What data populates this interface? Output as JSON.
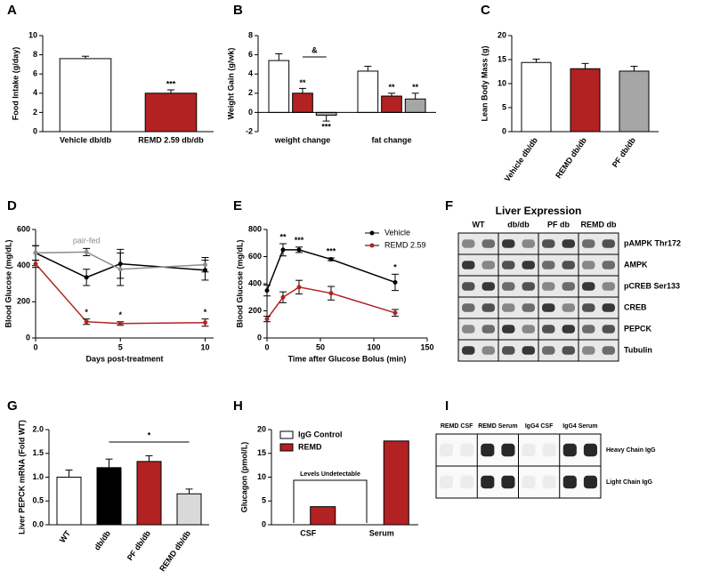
{
  "chart_data": [
    {
      "letter": "A",
      "type": "bar",
      "ylabel": "Food Intake (g/day)",
      "categories": [
        "Vehicle db/db",
        "REMD 2.59 db/db"
      ],
      "values": [
        7.6,
        4.0
      ],
      "errors": [
        0.25,
        0.35
      ],
      "colors": [
        "#ffffff",
        "#b22222"
      ],
      "labels": [
        null,
        "***"
      ],
      "ylim": [
        0,
        10
      ],
      "yticks": [
        0,
        2,
        4,
        6,
        8,
        10
      ]
    },
    {
      "letter": "B",
      "type": "bar",
      "ylabel": "Weight Gain (g/wk)",
      "categories": [
        "weight change",
        "fat change"
      ],
      "series": [
        {
          "color": "#ffffff",
          "values": [
            5.4,
            4.3
          ],
          "errors": [
            0.7,
            0.5
          ]
        },
        {
          "color": "#b22222",
          "values": [
            2.0,
            1.7
          ],
          "errors": [
            0.5,
            0.3
          ],
          "labels": [
            "**",
            "**"
          ]
        },
        {
          "color": "#a6a6a6",
          "values": [
            -0.3,
            1.4
          ],
          "errors": [
            0.6,
            0.6
          ],
          "labels": [
            "***",
            "**"
          ]
        }
      ],
      "bracket": {
        "text": "&"
      },
      "ylim": [
        -2,
        8
      ],
      "yticks": [
        -2,
        0,
        2,
        4,
        6,
        8
      ]
    },
    {
      "letter": "C",
      "type": "bar",
      "ylabel": "Lean Body Mass (g)",
      "categories": [
        "Vehicle db/db",
        "REMD db/db",
        "PF db/db"
      ],
      "values": [
        14.4,
        13.1,
        12.6
      ],
      "errors": [
        0.7,
        1.1,
        1.0
      ],
      "colors": [
        "#ffffff",
        "#b22222",
        "#a6a6a6"
      ],
      "ylim": [
        0,
        20
      ],
      "yticks": [
        0,
        5,
        10,
        15,
        20
      ]
    },
    {
      "letter": "D",
      "type": "line",
      "xlabel": "Days post-treatment",
      "ylabel": "Blood Glucose (mg/dL)",
      "x": [
        0,
        3,
        5,
        10
      ],
      "series": [
        {
          "color": "#000000",
          "values": [
            470,
            335,
            410,
            375
          ],
          "errors": [
            40,
            45,
            80,
            55
          ]
        },
        {
          "name": "pair-fed",
          "color": "#8c8c8c",
          "values": [
            470,
            475,
            380,
            405
          ],
          "errors": [
            40,
            20,
            90,
            40
          ]
        },
        {
          "color": "#b22222",
          "values": [
            410,
            90,
            80,
            85
          ],
          "errors": [
            20,
            15,
            10,
            20
          ]
        }
      ],
      "labels": [
        null,
        "*",
        "*",
        "*"
      ],
      "xlim": [
        0,
        10.5
      ],
      "xticks": [
        0,
        5,
        10
      ],
      "ylim": [
        0,
        600
      ],
      "yticks": [
        0,
        200,
        400,
        600
      ]
    },
    {
      "letter": "E",
      "type": "line",
      "xlabel": "Time after Glucose Bolus (min)",
      "ylabel": "Blood Glucose (mg/dL)",
      "x": [
        0,
        15,
        30,
        60,
        120
      ],
      "series": [
        {
          "name": "Vehicle",
          "color": "#000000",
          "values": [
            350,
            650,
            650,
            580,
            410
          ],
          "errors": [
            40,
            45,
            20,
            10,
            60
          ]
        },
        {
          "name": "REMD 2.59",
          "color": "#b22222",
          "values": [
            140,
            300,
            375,
            330,
            185
          ],
          "errors": [
            20,
            40,
            50,
            50,
            25
          ]
        }
      ],
      "labels": [
        null,
        "**",
        "***",
        "***",
        "*"
      ],
      "legend": "upper right",
      "xlim": [
        0,
        150
      ],
      "xticks": [
        0,
        50,
        100,
        150
      ],
      "ylim": [
        0,
        800
      ],
      "yticks": [
        0,
        200,
        400,
        600,
        800
      ]
    },
    {
      "letter": "F",
      "type": "blot",
      "title": "Liver Expression",
      "lanes": [
        "WT",
        "db/db",
        "PF db",
        "REMD db"
      ],
      "bands": [
        "pAMPK Thr172",
        "AMPK",
        "pCREB Ser133",
        "CREB",
        "PEPCK",
        "Tubulin"
      ]
    },
    {
      "letter": "G",
      "type": "bar",
      "ylabel": "Liver PEPCK mRNA (Fold WT)",
      "categories": [
        "WT",
        "db/db",
        "PF db/db",
        "REMD db/db"
      ],
      "values": [
        1.0,
        1.2,
        1.33,
        0.65
      ],
      "errors": [
        0.15,
        0.18,
        0.12,
        0.1
      ],
      "colors": [
        "#ffffff",
        "#000000",
        "#b22222",
        "#d9d9d9"
      ],
      "bracket": {
        "text": "*"
      },
      "ylim": [
        0,
        2
      ],
      "yticks": [
        {
          "value": 0,
          "label": "0.0"
        },
        {
          "value": 0.5,
          "label": "0.5"
        },
        {
          "value": 1,
          "label": "1.0"
        },
        {
          "value": 1.5,
          "label": "1.5"
        },
        {
          "value": 2,
          "label": "2.0"
        }
      ]
    },
    {
      "letter": "H",
      "type": "bar",
      "ylabel": "Glucagon (pmol/L)",
      "categories": [
        "CSF",
        "Serum"
      ],
      "series": [
        {
          "name": "IgG Control",
          "color": "#ffffff",
          "values": [
            null,
            null
          ]
        },
        {
          "name": "REMD",
          "color": "#b22222",
          "values": [
            3.8,
            17.6
          ]
        }
      ],
      "legend": "upper left",
      "bracket": {
        "text": "Levels Undetectable"
      },
      "ylim": [
        0,
        20
      ],
      "yticks": [
        0,
        5,
        10,
        15,
        20
      ]
    },
    {
      "letter": "I",
      "type": "blot",
      "lanes": [
        "REMD CSF",
        "REMD Serum",
        "IgG4 CSF",
        "IgG4 Serum"
      ],
      "bands": [
        "Heavy Chain IgG",
        "Light Chain IgG"
      ]
    }
  ]
}
